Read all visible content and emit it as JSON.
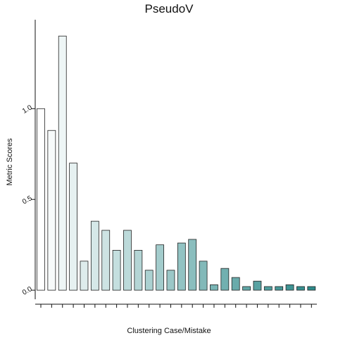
{
  "chart_data": {
    "type": "bar",
    "title": "PseudoV",
    "xlabel": "Clustering Case/Mistake",
    "ylabel": "Metric Scores",
    "categories": [
      null,
      null,
      null,
      null,
      null,
      null,
      null,
      null,
      null,
      null,
      null,
      null,
      null,
      null,
      null,
      null,
      null,
      null,
      null,
      null,
      null,
      null,
      null,
      null,
      null,
      null
    ],
    "values": [
      1.0,
      0.88,
      1.4,
      0.7,
      0.16,
      0.38,
      0.33,
      0.22,
      0.33,
      0.22,
      0.11,
      0.25,
      0.11,
      0.26,
      0.28,
      0.16,
      0.03,
      0.12,
      0.07,
      0.02,
      0.05,
      0.02,
      0.02,
      0.03,
      0.02,
      0.02
    ],
    "colors": [
      "#ffffff",
      "#f7fafa",
      "#eef6f6",
      "#e6f1f1",
      "#deecec",
      "#d5e8e8",
      "#cde3e3",
      "#c4dfdf",
      "#bcdada",
      "#b4d5d5",
      "#abd1d1",
      "#a3cccc",
      "#9bc7c7",
      "#92c3c3",
      "#8abebe",
      "#82b9b9",
      "#79b5b5",
      "#71b0b0",
      "#69abab",
      "#60a7a7",
      "#58a2a2",
      "#4f9e9e",
      "#479999",
      "#3f9494",
      "#369090",
      "#2e8b8b"
    ],
    "ylim": [
      -0.05,
      1.49
    ],
    "yticks": [
      {
        "value": 0,
        "label": "0.0"
      },
      0.5,
      {
        "value": 1,
        "label": "1.0"
      }
    ]
  }
}
